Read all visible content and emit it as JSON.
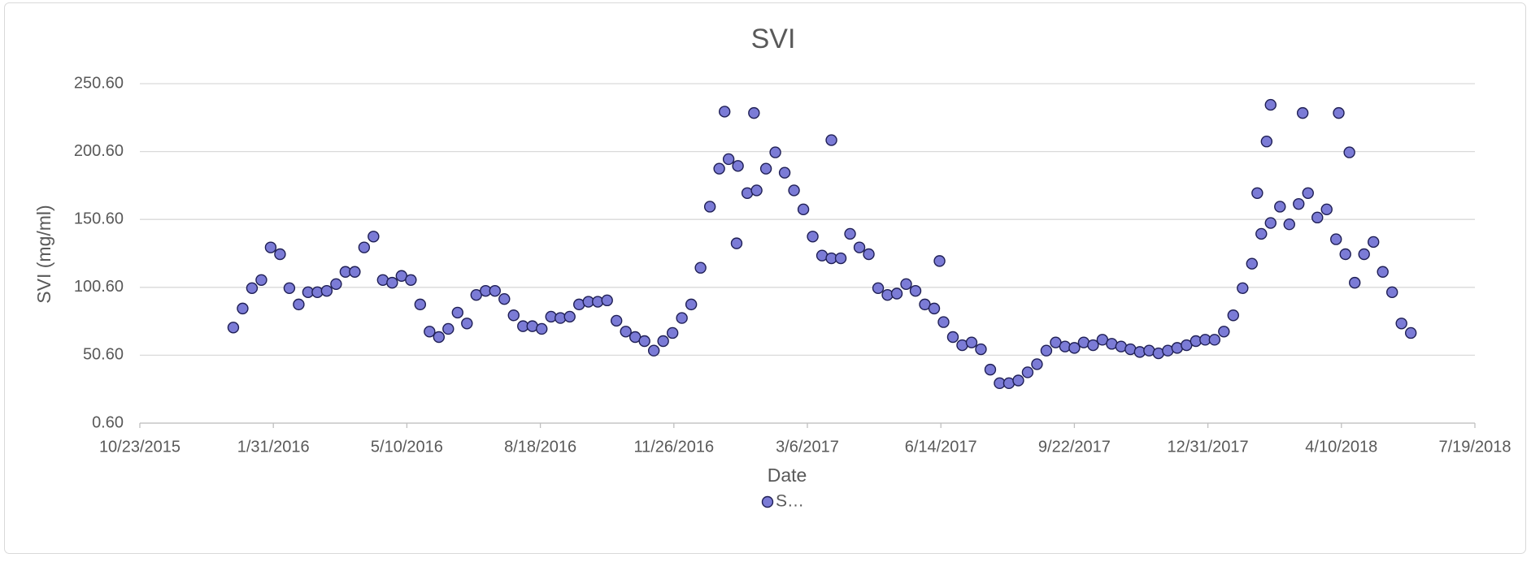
{
  "chart_data": {
    "type": "scatter",
    "title": "SVI",
    "x_label": "Date",
    "y_label": "SVI (mg/ml)",
    "xlim": [
      "10/23/2015",
      "7/19/2018"
    ],
    "xticks": [
      "10/23/2015",
      "1/31/2016",
      "5/10/2016",
      "8/18/2016",
      "11/26/2016",
      "3/6/2017",
      "6/14/2017",
      "9/22/2017",
      "12/31/2017",
      "4/10/2018",
      "7/19/2018"
    ],
    "ylim": [
      0.6,
      250.6
    ],
    "yticks": [
      {
        "value": 0.6,
        "label": "0.60"
      },
      {
        "value": 50.6,
        "label": "50.60"
      },
      {
        "value": 100.6,
        "label": "100.60"
      },
      {
        "value": 150.6,
        "label": "150.60"
      },
      {
        "value": 200.6,
        "label": "200.60"
      },
      {
        "value": 250.6,
        "label": "250.60"
      }
    ],
    "grid": true,
    "legend": "bottom",
    "series": [
      {
        "name": "S…",
        "color": "#7b7bd6",
        "edge_color": "#1f1f55",
        "x": [
          "1/1/2016",
          "1/8/2016",
          "1/15/2016",
          "1/22/2016",
          "1/29/2016",
          "2/5/2016",
          "2/12/2016",
          "2/19/2016",
          "2/26/2016",
          "3/4/2016",
          "3/11/2016",
          "3/18/2016",
          "3/25/2016",
          "4/1/2016",
          "4/8/2016",
          "4/15/2016",
          "4/22/2016",
          "4/29/2016",
          "5/6/2016",
          "5/13/2016",
          "5/20/2016",
          "5/27/2016",
          "6/3/2016",
          "6/10/2016",
          "6/17/2016",
          "6/24/2016",
          "7/1/2016",
          "7/8/2016",
          "7/15/2016",
          "7/22/2016",
          "7/29/2016",
          "8/5/2016",
          "8/12/2016",
          "8/19/2016",
          "8/26/2016",
          "9/2/2016",
          "9/9/2016",
          "9/16/2016",
          "9/23/2016",
          "9/30/2016",
          "10/7/2016",
          "10/14/2016",
          "10/21/2016",
          "10/28/2016",
          "11/4/2016",
          "11/11/2016",
          "11/18/2016",
          "11/25/2016",
          "12/2/2016",
          "12/9/2016",
          "12/16/2016",
          "12/23/2016",
          "12/30/2016",
          "1/6/2017",
          "1/13/2017",
          "1/20/2017",
          "1/27/2017",
          "2/3/2017",
          "2/10/2017",
          "2/17/2017",
          "2/24/2017",
          "3/3/2017",
          "3/10/2017",
          "3/17/2017",
          "3/24/2017",
          "3/31/2017",
          "4/7/2017",
          "4/14/2017",
          "4/21/2017",
          "4/28/2017",
          "5/5/2017",
          "5/12/2017",
          "5/19/2017",
          "5/26/2017",
          "6/2/2017",
          "6/9/2017",
          "6/16/2017",
          "6/23/2017",
          "6/30/2017",
          "7/7/2017",
          "7/14/2017",
          "7/21/2017",
          "7/28/2017",
          "8/4/2017",
          "8/11/2017",
          "8/18/2017",
          "8/25/2017",
          "9/1/2017",
          "9/8/2017",
          "9/15/2017",
          "9/22/2017",
          "9/29/2017",
          "10/6/2017",
          "10/13/2017",
          "10/20/2017",
          "10/27/2017",
          "11/3/2017",
          "11/10/2017",
          "11/17/2017",
          "11/24/2017",
          "12/1/2017",
          "12/8/2017",
          "12/15/2017",
          "12/22/2017",
          "12/29/2017",
          "1/5/2018",
          "1/12/2018",
          "1/19/2018",
          "1/26/2018",
          "2/2/2018",
          "2/9/2018",
          "2/16/2018",
          "2/23/2018",
          "3/2/2018",
          "3/9/2018",
          "3/16/2018",
          "3/23/2018",
          "3/30/2018",
          "4/6/2018",
          "4/13/2018",
          "4/20/2018",
          "4/27/2018",
          "5/4/2018",
          "5/11/2018",
          "5/18/2018",
          "5/25/2018",
          "6/1/2018",
          "1/3/2017",
          "1/12/2017",
          "1/25/2017",
          "3/24/2017",
          "6/13/2017",
          "2/6/2018",
          "2/13/2018",
          "2/16/2018",
          "3/12/2018",
          "4/8/2018",
          "4/16/2018"
        ],
        "values": [
          71,
          85,
          100,
          106,
          130,
          125,
          100,
          88,
          97,
          97,
          98,
          103,
          112,
          112,
          130,
          138,
          106,
          104,
          109,
          106,
          88,
          68,
          64,
          70,
          82,
          74,
          95,
          98,
          98,
          92,
          80,
          72,
          72,
          70,
          79,
          78,
          79,
          88,
          90,
          90,
          91,
          76,
          68,
          64,
          61,
          54,
          61,
          67,
          78,
          88,
          115,
          160,
          188,
          195,
          190,
          170,
          172,
          188,
          200,
          185,
          172,
          158,
          138,
          124,
          122,
          122,
          140,
          130,
          125,
          100,
          95,
          96,
          103,
          98,
          88,
          85,
          75,
          64,
          58,
          60,
          55,
          40,
          30,
          30,
          32,
          38,
          44,
          54,
          60,
          57,
          56,
          60,
          58,
          62,
          59,
          57,
          55,
          53,
          54,
          52,
          54,
          56,
          58,
          61,
          62,
          62,
          68,
          80,
          100,
          118,
          140,
          148,
          160,
          147,
          162,
          170,
          152,
          158,
          136,
          125,
          104,
          125,
          134,
          112,
          97,
          74,
          67,
          230,
          133,
          229,
          209,
          120,
          170,
          208,
          235,
          229,
          229,
          200
        ]
      }
    ]
  }
}
